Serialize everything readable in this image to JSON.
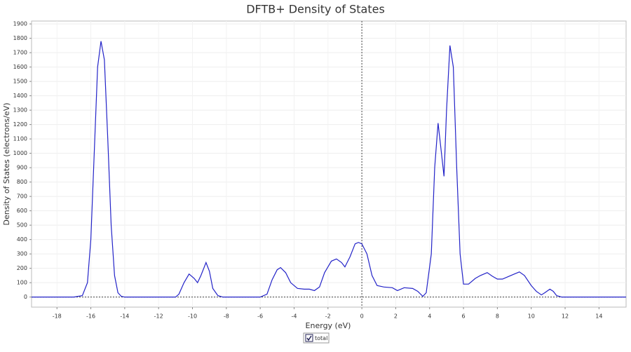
{
  "chart_data": {
    "type": "line",
    "title": "DFTB+ Density of States",
    "x_label": "Energy (eV)",
    "y_label": "Density of States (electrons/eV)",
    "x": [
      -19.5,
      -17,
      -16.5,
      -16.2,
      -16,
      -15.8,
      -15.6,
      -15.4,
      -15.2,
      -15,
      -14.8,
      -14.6,
      -14.4,
      -14.2,
      -14,
      -11,
      -10.8,
      -10.5,
      -10.2,
      -9.9,
      -9.7,
      -9.5,
      -9.2,
      -9,
      -8.8,
      -8.5,
      -8.2,
      -6,
      -5.6,
      -5.3,
      -5,
      -4.8,
      -4.5,
      -4.2,
      -3.8,
      -3.4,
      -3.1,
      -2.8,
      -2.5,
      -2.2,
      -1.8,
      -1.5,
      -1.2,
      -1,
      -0.7,
      -0.4,
      -0.2,
      0,
      0.3,
      0.6,
      0.9,
      1.3,
      1.8,
      2.1,
      2.5,
      3,
      3.3,
      3.6,
      3.8,
      4.1,
      4.3,
      4.5,
      4.7,
      4.85,
      5,
      5.2,
      5.4,
      5.6,
      5.8,
      6,
      6.3,
      6.7,
      7,
      7.4,
      7.7,
      8,
      8.3,
      8.6,
      9,
      9.3,
      9.6,
      10,
      10.3,
      10.6,
      10.8,
      11.1,
      11.3,
      11.5,
      11.8,
      15.6
    ],
    "series": [
      {
        "name": "total",
        "color": "#2323c8",
        "values": [
          0,
          0,
          10,
          100,
          400,
          1000,
          1600,
          1780,
          1650,
          1100,
          500,
          150,
          30,
          5,
          0,
          0,
          20,
          100,
          160,
          130,
          100,
          150,
          240,
          180,
          60,
          10,
          0,
          0,
          20,
          120,
          190,
          205,
          170,
          100,
          60,
          55,
          55,
          45,
          70,
          170,
          250,
          265,
          240,
          210,
          280,
          370,
          380,
          370,
          300,
          150,
          80,
          70,
          65,
          45,
          65,
          60,
          40,
          5,
          30,
          300,
          900,
          1210,
          1000,
          840,
          1300,
          1750,
          1600,
          900,
          300,
          90,
          90,
          130,
          150,
          170,
          145,
          125,
          125,
          140,
          160,
          175,
          150,
          80,
          40,
          15,
          30,
          55,
          40,
          10,
          0,
          0
        ]
      }
    ],
    "xlim": [
      -19.5,
      15.6
    ],
    "ylim": [
      -70,
      1920
    ],
    "xticks": [
      -18,
      -16,
      -14,
      -12,
      -10,
      -8,
      -6,
      -4,
      -2,
      0,
      2,
      4,
      6,
      8,
      10,
      12,
      14
    ],
    "yticks": [
      0,
      100,
      200,
      300,
      400,
      500,
      600,
      700,
      800,
      900,
      1000,
      1100,
      1200,
      1300,
      1400,
      1500,
      1600,
      1700,
      1800,
      1900
    ],
    "grid": true
  }
}
